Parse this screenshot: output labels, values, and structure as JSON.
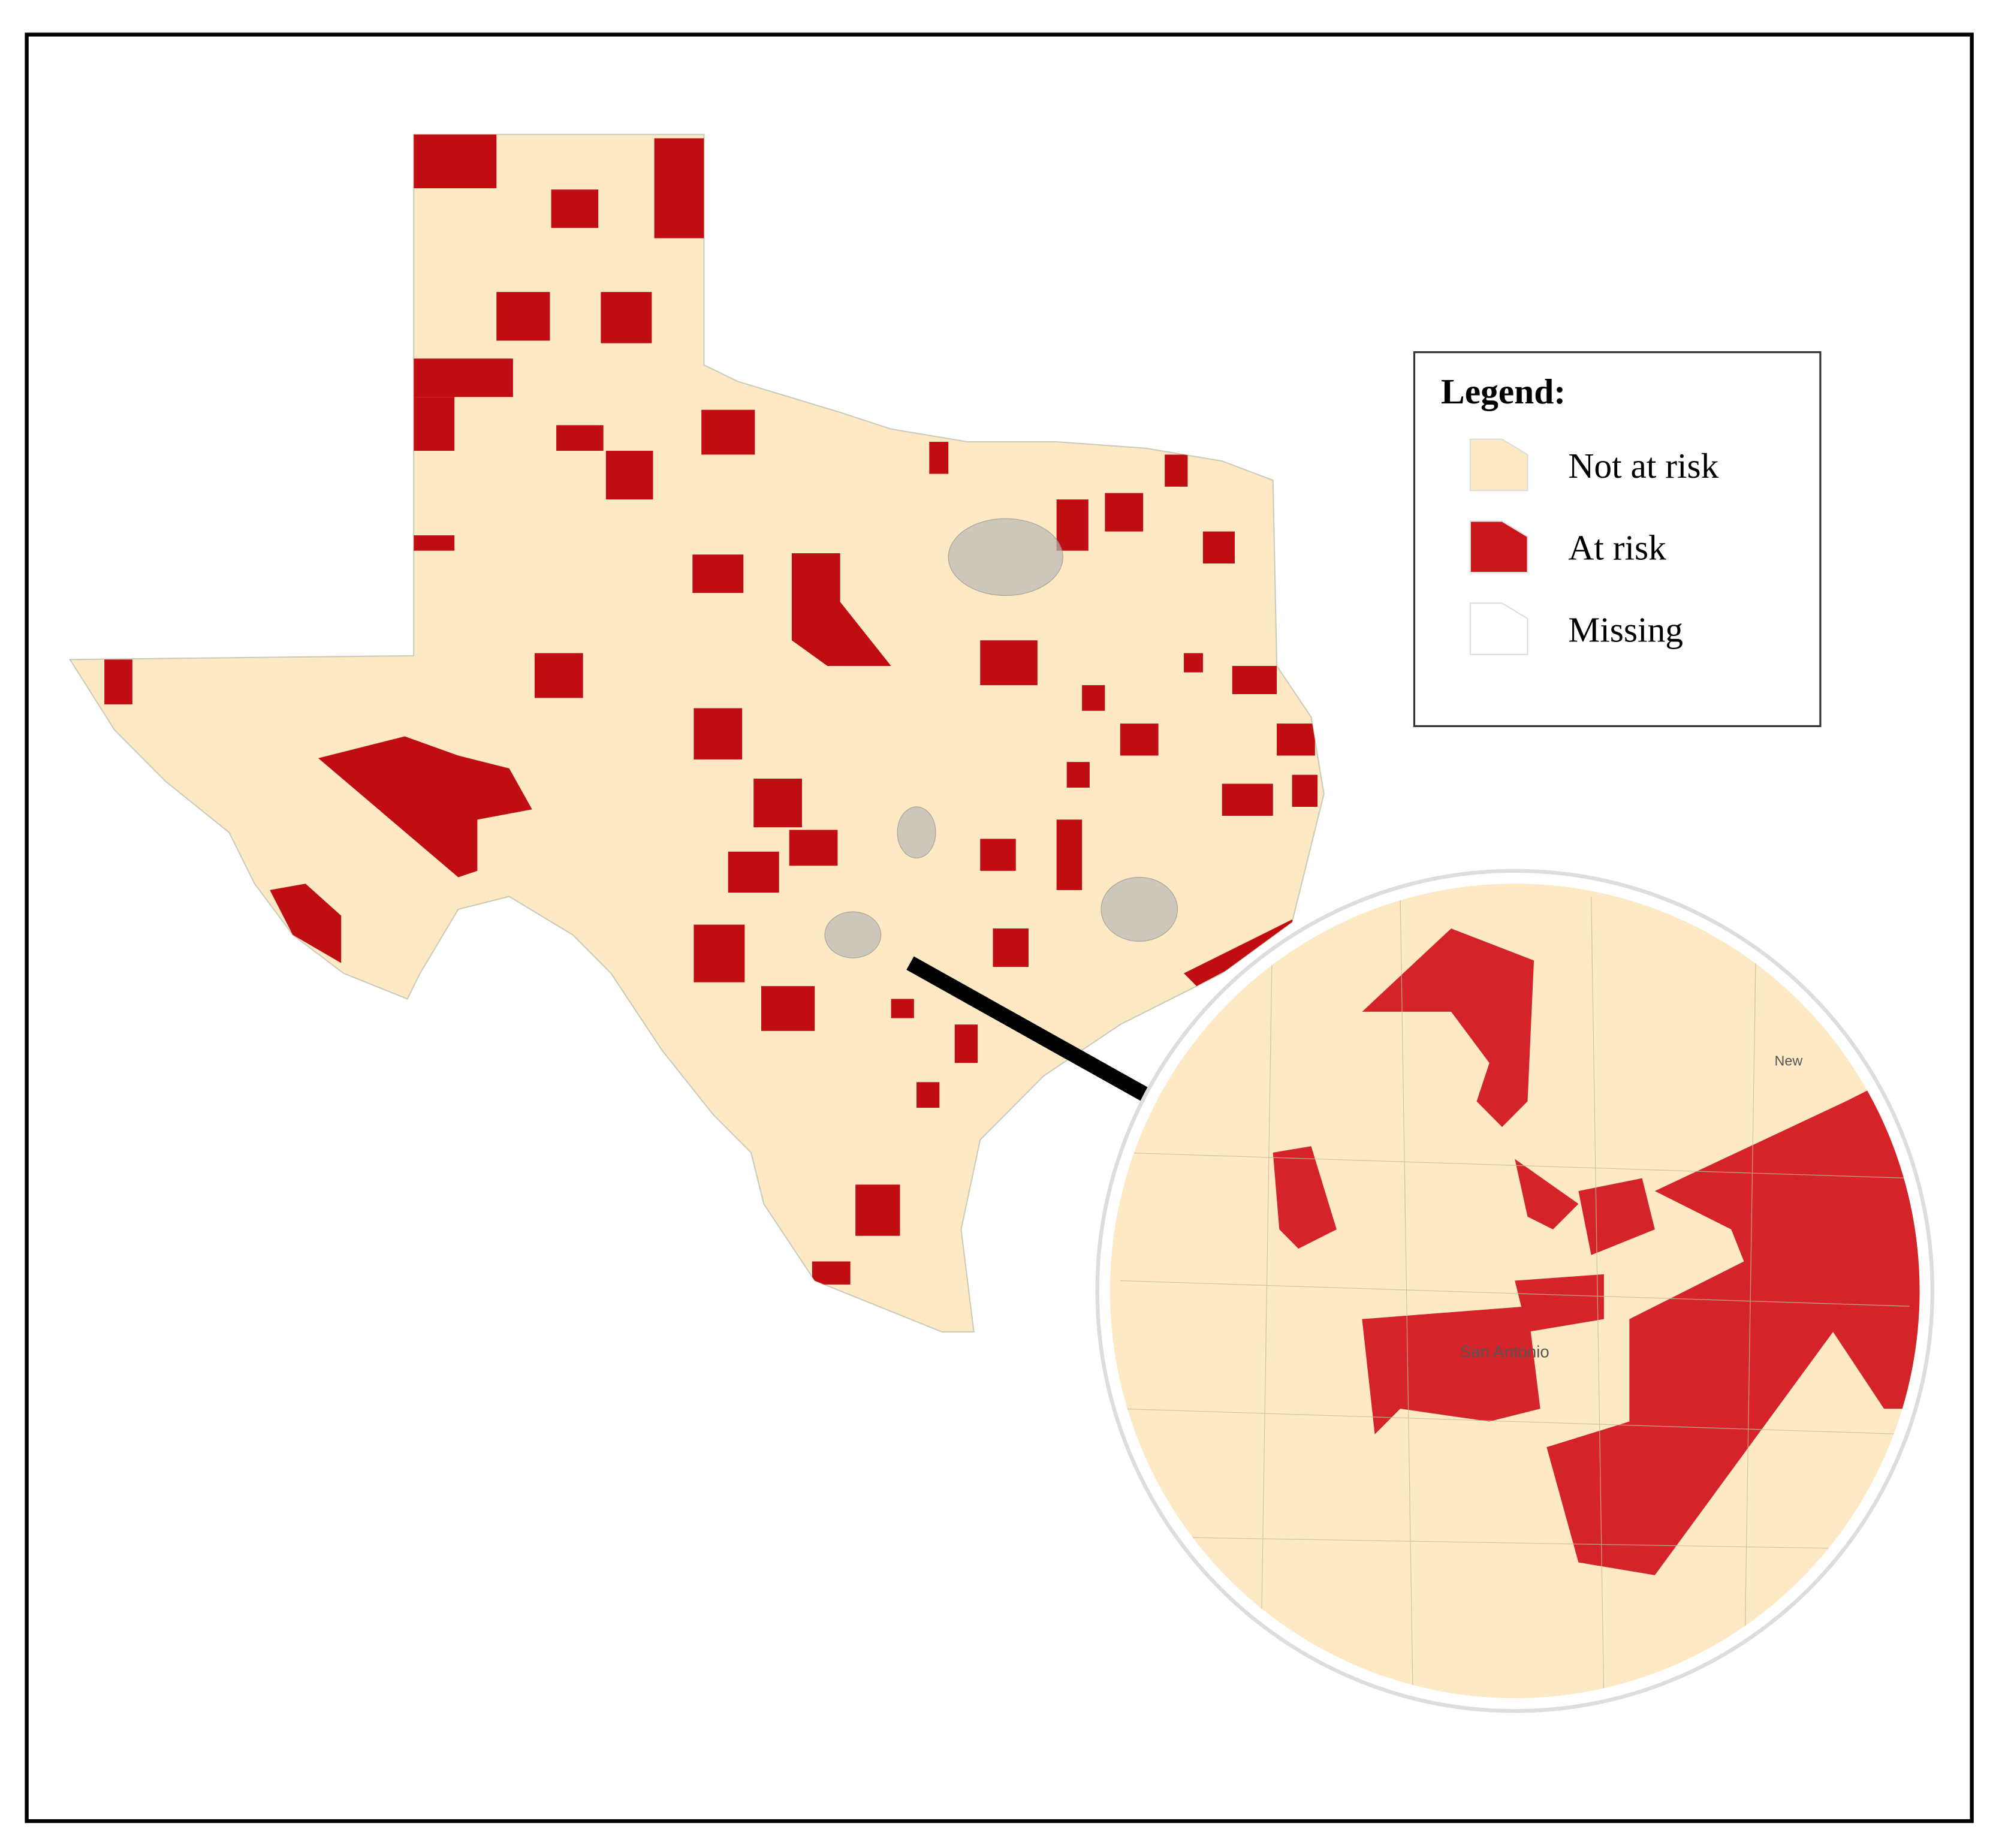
{
  "legend": {
    "title": "Legend:",
    "items": [
      {
        "label": "Not at risk",
        "color": "#fde9c4"
      },
      {
        "label": "At risk",
        "color": "#c8141b"
      },
      {
        "label": "Missing",
        "color": "#ffffff"
      }
    ]
  },
  "inset": {
    "labels": [
      "San Antonio",
      "New"
    ]
  }
}
